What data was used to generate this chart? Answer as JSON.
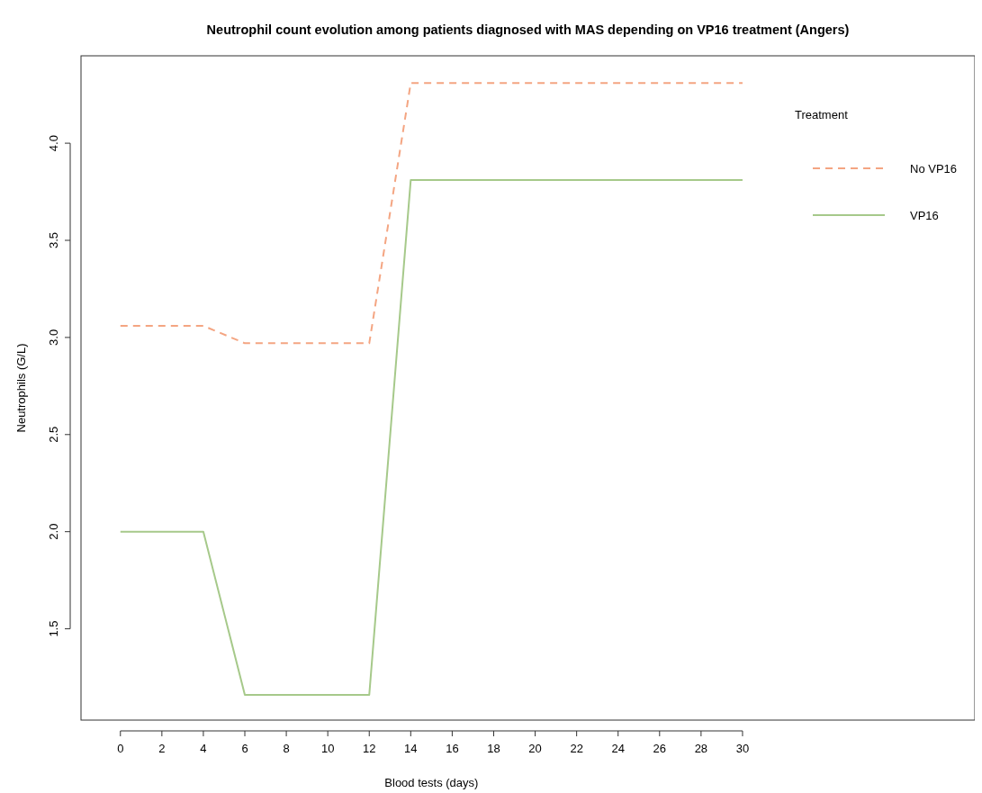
{
  "chart_data": {
    "type": "line",
    "title": "Neutrophil count evolution among patients diagnosed with MAS depending on VP16 treatment (Angers)",
    "xlabel": "Blood tests (days)",
    "ylabel": "Neutrophils (G/L)",
    "legend_title": "Treatment",
    "x": [
      0,
      2,
      4,
      6,
      8,
      10,
      12,
      14,
      16,
      18,
      20,
      22,
      24,
      26,
      28,
      30
    ],
    "series": [
      {
        "name": "No VP16",
        "color": "#f4a582",
        "line_style": "dashed",
        "values": [
          3.06,
          3.06,
          3.06,
          2.97,
          2.97,
          2.97,
          2.97,
          4.31,
          4.31,
          4.31,
          4.31,
          4.31,
          4.31,
          4.31,
          4.31,
          4.31
        ]
      },
      {
        "name": "VP16",
        "color": "#a6c98a",
        "line_style": "solid",
        "values": [
          2.0,
          2.0,
          2.0,
          1.16,
          1.16,
          1.16,
          1.16,
          3.81,
          3.81,
          3.81,
          3.81,
          3.81,
          3.81,
          3.81,
          3.81,
          3.81
        ]
      }
    ],
    "xlim": [
      -1.9,
      41.2
    ],
    "xticks": [
      0,
      2,
      4,
      6,
      8,
      10,
      12,
      14,
      16,
      18,
      20,
      22,
      24,
      26,
      28,
      30
    ],
    "ylim": [
      1.03,
      4.45
    ],
    "yticks": [
      1.5,
      {
        "value": 2,
        "label": "2.0"
      },
      2.5,
      {
        "value": 3,
        "label": "3.0"
      },
      3.5,
      {
        "value": 4,
        "label": "4.0"
      }
    ],
    "grid": false,
    "legend": "top right",
    "marker": "none"
  }
}
